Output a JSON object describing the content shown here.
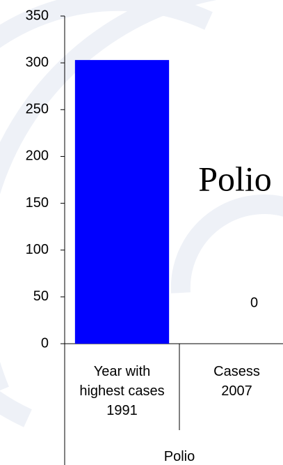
{
  "chart_data": {
    "type": "bar",
    "title": "Polio",
    "group_label": "Polio",
    "categories": [
      "Year with highest cases 1991",
      "Casess 2007"
    ],
    "values": [
      303,
      0
    ],
    "value_labels": [
      null,
      "0"
    ],
    "color": "#0000ff",
    "ylim": [
      0,
      350
    ],
    "yticks": [
      0,
      50,
      100,
      150,
      200,
      250,
      300,
      350
    ]
  }
}
